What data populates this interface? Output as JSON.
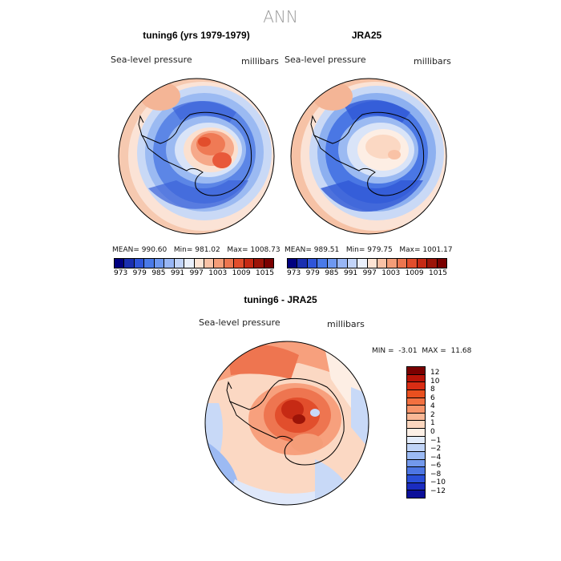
{
  "figure": {
    "title": "ANN"
  },
  "panels": [
    {
      "title": "tuning6 (yrs 1979-1979)",
      "variable": "Sea-level pressure",
      "units": "millibars",
      "stats": {
        "mean_label": "MEAN=",
        "mean": "990.60",
        "min_label": "Min=",
        "min": "981.02",
        "max_label": "Max=",
        "max": "1008.73"
      }
    },
    {
      "title": "JRA25",
      "variable": "Sea-level pressure",
      "units": "millibars",
      "stats": {
        "mean_label": "MEAN=",
        "mean": "989.51",
        "min_label": "Min=",
        "min": "979.75",
        "max_label": "Max=",
        "max": "1001.17"
      }
    },
    {
      "title": "tuning6 - JRA25",
      "variable": "Sea-level pressure",
      "units": "millibars",
      "stats": {
        "min_label": "MIN =",
        "min": "-3.01",
        "max_label": "MAX =",
        "max": "11.68"
      }
    }
  ],
  "colorbar_top": {
    "colors": [
      "#00007f",
      "#1a2fb0",
      "#2f55d9",
      "#4a7ae8",
      "#6e98f0",
      "#98b6f5",
      "#c2d4f8",
      "#eaf0fb",
      "#fde4d4",
      "#f9c2a6",
      "#f49d78",
      "#ec7650",
      "#e24e2c",
      "#c62a14",
      "#9c1408",
      "#7a0000"
    ],
    "labels": [
      "973",
      "979",
      "985",
      "991",
      "997",
      "1003",
      "1009",
      "1015"
    ]
  },
  "colorbar_diff": {
    "colors": [
      "#7a0000",
      "#b81408",
      "#d92d14",
      "#e9501f",
      "#f27040",
      "#f7946a",
      "#fab896",
      "#fcd7bf",
      "#fdf0e6",
      "#e3ecfb",
      "#c0d4f7",
      "#9bbaf4",
      "#7399ec",
      "#4d76e3",
      "#2a4fd8",
      "#1a2cc0",
      "#0c0f99"
    ],
    "labels": [
      "12",
      "10",
      "8",
      "6",
      "4",
      "2",
      "1",
      "0",
      "−1",
      "−2",
      "−4",
      "−6",
      "−8",
      "−10",
      "−12"
    ]
  }
}
